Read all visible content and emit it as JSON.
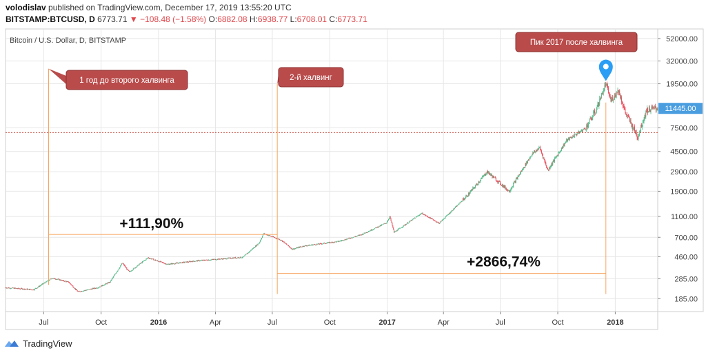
{
  "header": {
    "user": "volodislav",
    "published": "published on TradingView.com, December 17, 2019 13:55:20 UTC",
    "symbol": "BITSTAMP:BTCUSD, D",
    "price": "6773.71",
    "change_arrow": "▼",
    "change": "−108.48 (−1.58%)",
    "o_label": "O:",
    "o_value": "6882.08",
    "h_label": "H:",
    "h_value": "6938.77",
    "l_label": "L:",
    "l_value": "6708.01",
    "c_label": "C:",
    "c_value": "6773.71"
  },
  "footer": {
    "brand": "TradingView",
    "logo_icon": "tradingview-logo-icon"
  },
  "colors": {
    "up": "#53b987",
    "down": "#eb4d5c",
    "annotation": "#b94b4b",
    "guide": "#f7a35c",
    "grid": "#e6e6e6",
    "marker": "#2a9df4",
    "price_badge": "#4a9ee0",
    "dashed": "#c0392b"
  },
  "chart_data": {
    "type": "candlestick",
    "title": "Bitcoin / U.S. Dollar, D, BITSTAMP",
    "y_scale": "log",
    "ylim": [
      140,
      64000
    ],
    "x_range": [
      "2015-05-01",
      "2018-03-10"
    ],
    "y_tick_labels": [
      {
        "value": 185,
        "label": "185.00"
      },
      {
        "value": 285,
        "label": "285.00"
      },
      {
        "value": 460,
        "label": "460.00"
      },
      {
        "value": 700,
        "label": "700.00"
      },
      {
        "value": 1100,
        "label": "1100.00"
      },
      {
        "value": 1900,
        "label": "1900.00"
      },
      {
        "value": 2900,
        "label": "2900.00"
      },
      {
        "value": 4500,
        "label": "4500.00"
      },
      {
        "value": 7500,
        "label": "7500.00"
      },
      {
        "value": 19500,
        "label": "19500.00"
      },
      {
        "value": 32000,
        "label": "32000.00"
      },
      {
        "value": 52000,
        "label": "52000.00"
      }
    ],
    "x_tick_labels": [
      {
        "date": "2015-07-01",
        "label": "Jul",
        "bold": false
      },
      {
        "date": "2015-10-01",
        "label": "Oct",
        "bold": false
      },
      {
        "date": "2016-01-01",
        "label": "2016",
        "bold": true
      },
      {
        "date": "2016-04-01",
        "label": "Apr",
        "bold": false
      },
      {
        "date": "2016-07-01",
        "label": "Jul",
        "bold": false
      },
      {
        "date": "2016-10-01",
        "label": "Oct",
        "bold": false
      },
      {
        "date": "2017-01-01",
        "label": "2017",
        "bold": true
      },
      {
        "date": "2017-04-01",
        "label": "Apr",
        "bold": false
      },
      {
        "date": "2017-07-01",
        "label": "Jul",
        "bold": false
      },
      {
        "date": "2017-10-01",
        "label": "Oct",
        "bold": false
      },
      {
        "date": "2018-01-01",
        "label": "2018",
        "bold": true
      }
    ],
    "price_path": [
      {
        "date": "2015-05-01",
        "price": 235
      },
      {
        "date": "2015-06-15",
        "price": 225
      },
      {
        "date": "2015-07-15",
        "price": 290
      },
      {
        "date": "2015-08-10",
        "price": 265
      },
      {
        "date": "2015-08-25",
        "price": 215
      },
      {
        "date": "2015-09-25",
        "price": 235
      },
      {
        "date": "2015-10-15",
        "price": 265
      },
      {
        "date": "2015-11-04",
        "price": 400
      },
      {
        "date": "2015-11-15",
        "price": 330
      },
      {
        "date": "2015-12-15",
        "price": 450
      },
      {
        "date": "2016-01-15",
        "price": 390
      },
      {
        "date": "2016-03-01",
        "price": 420
      },
      {
        "date": "2016-05-15",
        "price": 455
      },
      {
        "date": "2016-06-10",
        "price": 620
      },
      {
        "date": "2016-06-17",
        "price": 760
      },
      {
        "date": "2016-07-15",
        "price": 660
      },
      {
        "date": "2016-08-02",
        "price": 540
      },
      {
        "date": "2016-08-20",
        "price": 580
      },
      {
        "date": "2016-10-15",
        "price": 640
      },
      {
        "date": "2016-11-20",
        "price": 740
      },
      {
        "date": "2016-12-31",
        "price": 960
      },
      {
        "date": "2017-01-05",
        "price": 1100
      },
      {
        "date": "2017-01-12",
        "price": 780
      },
      {
        "date": "2017-02-25",
        "price": 1180
      },
      {
        "date": "2017-03-25",
        "price": 950
      },
      {
        "date": "2017-05-10",
        "price": 1750
      },
      {
        "date": "2017-06-10",
        "price": 2900
      },
      {
        "date": "2017-07-15",
        "price": 1900
      },
      {
        "date": "2017-08-20",
        "price": 4200
      },
      {
        "date": "2017-09-02",
        "price": 4900
      },
      {
        "date": "2017-09-15",
        "price": 3000
      },
      {
        "date": "2017-10-15",
        "price": 5700
      },
      {
        "date": "2017-11-15",
        "price": 7500
      },
      {
        "date": "2017-12-01",
        "price": 11000
      },
      {
        "date": "2017-12-17",
        "price": 19500
      },
      {
        "date": "2017-12-25",
        "price": 13500
      },
      {
        "date": "2018-01-06",
        "price": 17000
      },
      {
        "date": "2018-01-17",
        "price": 10500
      },
      {
        "date": "2018-02-06",
        "price": 6200
      },
      {
        "date": "2018-02-20",
        "price": 11000
      },
      {
        "date": "2018-03-05",
        "price": 11445
      }
    ],
    "last_price_badge": {
      "value": 11445,
      "label": "11445.00"
    },
    "dashed_level": 6773.71,
    "annotations": {
      "year_before": {
        "date": "2015-07-09",
        "label": "1 год до второго халвинга"
      },
      "halving": {
        "date": "2016-07-09",
        "label": "2-й халвинг"
      },
      "peak": {
        "date": "2017-12-17",
        "label": "Пик 2017 после халвинга"
      },
      "gain1": {
        "label": "+111,90%",
        "from_date": "2015-07-09",
        "to_date": "2016-07-09",
        "price": 745
      },
      "gain2": {
        "label": "+2866,74%",
        "from_date": "2016-07-09",
        "to_date": "2017-12-17",
        "price": 320
      }
    }
  }
}
